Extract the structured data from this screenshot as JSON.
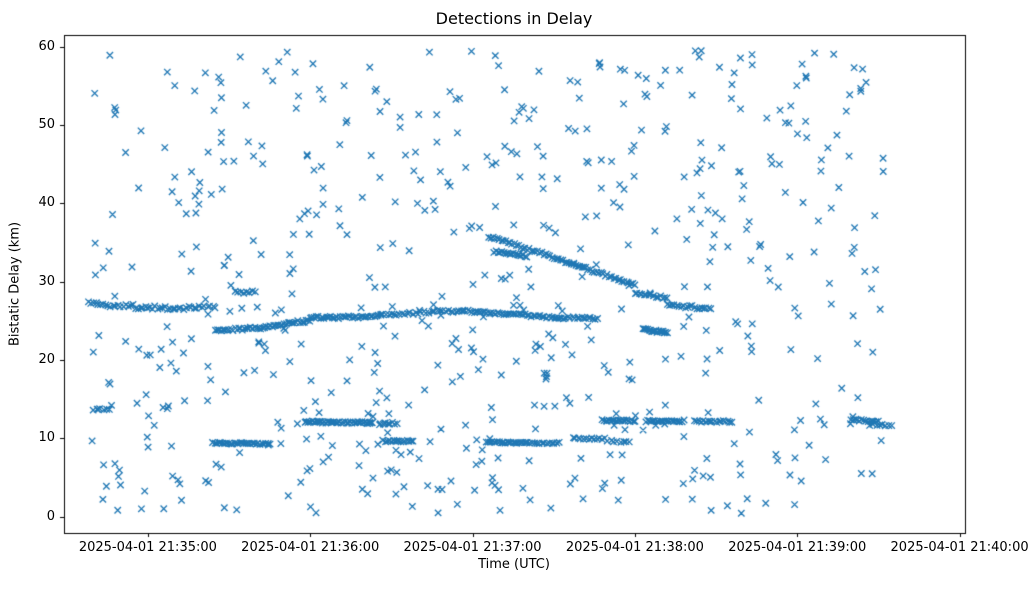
{
  "chart_data": {
    "type": "scatter",
    "title": "Detections in Delay",
    "xlabel": "Time (UTC)",
    "ylabel": "Bistatic Delay (km)",
    "marker": "x",
    "color": "#1f77b4",
    "grid": false,
    "legend": "none",
    "time_origin": "2025-04-01 21:34:00",
    "xlim": [
      29,
      362
    ],
    "ylim": [
      -2.1,
      61.5
    ],
    "x_ticks": [
      {
        "t": 60,
        "label": "2025-04-01 21:35:00"
      },
      {
        "t": 120,
        "label": "2025-04-01 21:36:00"
      },
      {
        "t": 180,
        "label": "2025-04-01 21:37:00"
      },
      {
        "t": 240,
        "label": "2025-04-01 21:38:00"
      },
      {
        "t": 300,
        "label": "2025-04-01 21:39:00"
      },
      {
        "t": 360,
        "label": "2025-04-01 21:40:00"
      }
    ],
    "y_ticks": [
      0,
      10,
      20,
      30,
      40,
      50,
      60
    ],
    "background_scatter": {
      "count": 600,
      "seed": 13,
      "t_range": [
        38,
        333
      ],
      "y_range": [
        0.4,
        59.6
      ]
    },
    "tracks_schema": [
      "t_start_s",
      "t_end_s",
      "delay_start_km",
      "delay_end_km",
      "n_points",
      "jitter_km"
    ],
    "tracks": [
      [
        38,
        70,
        27.2,
        26.5,
        36,
        0.3
      ],
      [
        70,
        85,
        26.6,
        26.8,
        16,
        0.25
      ],
      [
        92,
        100,
        28.7,
        28.6,
        8,
        0.2
      ],
      [
        85,
        103,
        23.8,
        24.1,
        26,
        0.2
      ],
      [
        103,
        120,
        24.2,
        25.1,
        24,
        0.2
      ],
      [
        120,
        146,
        25.4,
        25.6,
        36,
        0.2
      ],
      [
        146,
        175,
        25.7,
        26.3,
        30,
        0.25
      ],
      [
        175,
        212,
        26.3,
        25.4,
        48,
        0.18
      ],
      [
        212,
        226,
        25.4,
        25.3,
        18,
        0.18
      ],
      [
        186,
        240,
        35.8,
        29.6,
        70,
        0.22
      ],
      [
        188,
        200,
        33.8,
        33.3,
        18,
        0.2
      ],
      [
        240,
        252,
        28.6,
        27.9,
        15,
        0.2
      ],
      [
        243,
        252,
        23.9,
        23.5,
        18,
        0.18
      ],
      [
        252,
        268,
        27.1,
        26.5,
        20,
        0.22
      ],
      [
        40,
        46,
        13.7,
        13.7,
        6,
        0.15
      ],
      [
        118,
        143,
        12.1,
        12.0,
        46,
        0.15
      ],
      [
        146,
        152,
        11.9,
        11.9,
        8,
        0.15
      ],
      [
        228,
        240,
        12.3,
        12.2,
        20,
        0.15
      ],
      [
        244,
        258,
        12.2,
        12.2,
        22,
        0.15
      ],
      [
        262,
        276,
        12.2,
        12.1,
        18,
        0.15
      ],
      [
        320,
        330,
        12.4,
        12.2,
        14,
        0.25
      ],
      [
        327,
        335,
        11.7,
        11.6,
        8,
        0.2
      ],
      [
        84,
        105,
        9.4,
        9.3,
        30,
        0.15
      ],
      [
        147,
        158,
        9.7,
        9.6,
        16,
        0.15
      ],
      [
        185,
        200,
        9.5,
        9.4,
        22,
        0.15
      ],
      [
        200,
        212,
        9.4,
        9.4,
        14,
        0.15
      ],
      [
        218,
        229,
        10.0,
        9.9,
        12,
        0.15
      ],
      [
        230,
        238,
        9.6,
        9.5,
        8,
        0.15
      ]
    ]
  }
}
